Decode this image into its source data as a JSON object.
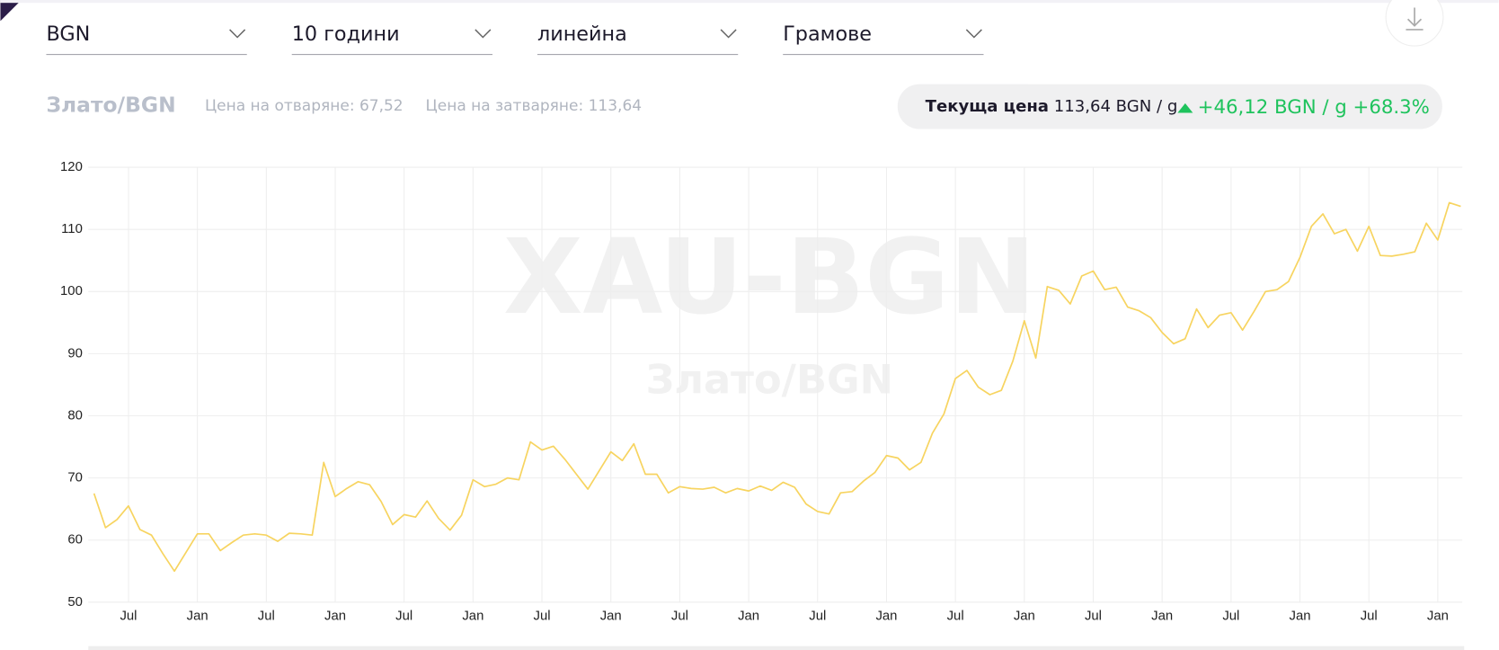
{
  "dropdowns": [
    "BGN",
    "10 години",
    "линейна",
    "Грамове"
  ],
  "header": {
    "title": "Злато/BGN",
    "open_label": "Цена на отваряне:",
    "open_value": "67,52",
    "close_label": "Цена на затваряне:",
    "close_value": "113,64"
  },
  "current": {
    "label": "Текуща цена",
    "price": "113,64 BGN / g",
    "change": "+46,12 BGN / g +68.3%"
  },
  "watermark": {
    "code": "XAU-BGN",
    "name": "Злато/BGN"
  },
  "chart_data": {
    "type": "line",
    "color": "#f7d460",
    "grid": true,
    "ylim": [
      50,
      120
    ],
    "yticks": [
      50,
      60,
      70,
      80,
      90,
      100,
      110,
      120
    ],
    "categories": [
      null,
      null,
      null,
      "Jul",
      null,
      null,
      null,
      null,
      null,
      "Jan",
      null,
      null,
      null,
      null,
      null,
      "Jul",
      null,
      null,
      null,
      null,
      null,
      "Jan",
      null,
      null,
      null,
      null,
      null,
      "Jul",
      null,
      null,
      null,
      null,
      null,
      "Jan",
      null,
      null,
      null,
      null,
      null,
      "Jul",
      null,
      null,
      null,
      null,
      null,
      "Jan",
      null,
      null,
      null,
      null,
      null,
      "Jul",
      null,
      null,
      null,
      null,
      null,
      "Jan",
      null,
      null,
      null,
      null,
      null,
      "Jul",
      null,
      null,
      null,
      null,
      null,
      "Jan",
      null,
      null,
      null,
      null,
      null,
      "Jul",
      null,
      null,
      null,
      null,
      null,
      "Jan",
      null,
      null,
      null,
      null,
      null,
      "Jul",
      null,
      null,
      null,
      null,
      null,
      "Jan",
      null,
      null,
      null,
      null,
      null,
      "Jul",
      null,
      null,
      null,
      null,
      null,
      "Jan",
      null,
      null,
      null,
      null,
      null,
      "Jul",
      null,
      null,
      null,
      null,
      null,
      "Jan",
      null,
      null
    ],
    "values": [
      67.5,
      62,
      63.3,
      65.5,
      61.7,
      60.8,
      57.8,
      55,
      58,
      61,
      61,
      58.3,
      59.6,
      60.8,
      61,
      60.8,
      59.8,
      61.1,
      61,
      60.8,
      72.5,
      67,
      68.3,
      69.4,
      68.9,
      66.2,
      62.5,
      64.1,
      63.7,
      66.3,
      63.5,
      61.6,
      64,
      69.7,
      68.6,
      69,
      70,
      69.7,
      75.8,
      74.5,
      75.1,
      73,
      70.6,
      68.2,
      71.2,
      74.2,
      72.8,
      75.5,
      70.6,
      70.6,
      67.6,
      68.6,
      68.3,
      68.2,
      68.5,
      67.6,
      68.3,
      67.9,
      68.7,
      68,
      69.3,
      68.5,
      65.8,
      64.6,
      64.2,
      67.6,
      67.8,
      69.5,
      70.9,
      73.6,
      73.2,
      71.3,
      72.5,
      77.2,
      80.3,
      86,
      87.3,
      84.6,
      83.4,
      84.1,
      88.8,
      95.3,
      89.3,
      100.8,
      100.2,
      98,
      102.5,
      103.3,
      100.3,
      100.7,
      97.5,
      96.9,
      95.8,
      93.4,
      91.6,
      92.4,
      97.2,
      94.2,
      96.2,
      96.6,
      93.8,
      96.8,
      100,
      100.3,
      101.6,
      105.5,
      110.5,
      112.5,
      109.3,
      110,
      106.5,
      110.5,
      105.8,
      105.7,
      106,
      106.4,
      111,
      108.3,
      114.3,
      113.7
    ]
  }
}
